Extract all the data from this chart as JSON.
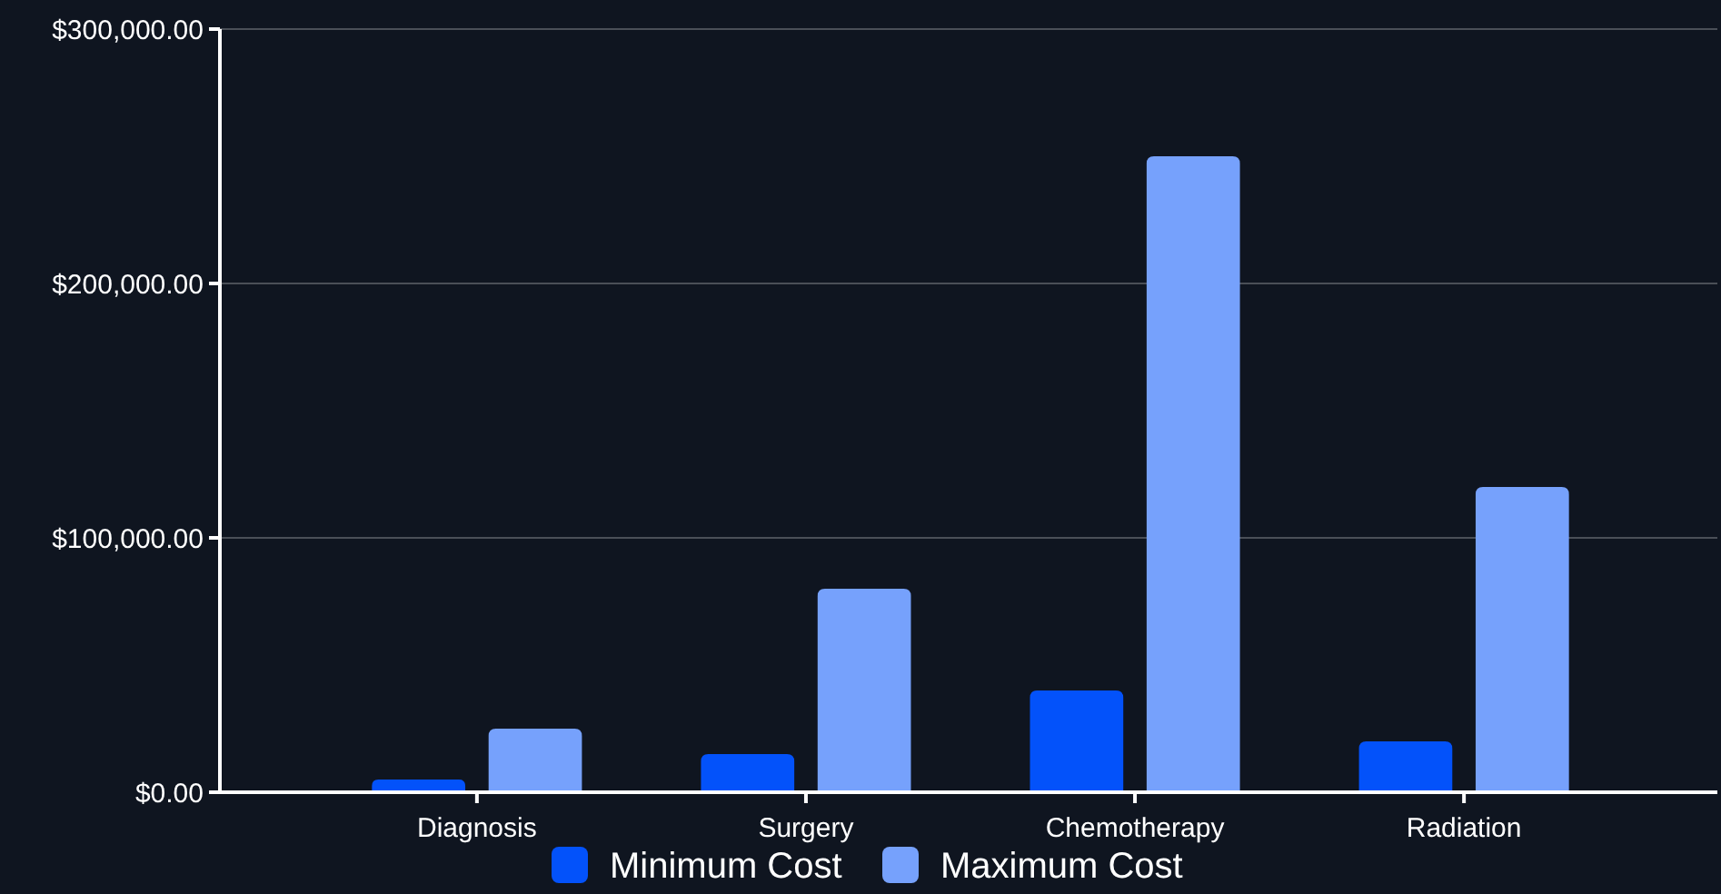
{
  "chart_data": {
    "type": "bar",
    "categories": [
      "Diagnosis",
      "Surgery",
      "Chemotherapy",
      "Radiation"
    ],
    "series": [
      {
        "name": "Minimum Cost",
        "color": "#0352fa",
        "values": [
          5000,
          15000,
          40000,
          20000
        ]
      },
      {
        "name": "Maximum Cost",
        "color": "#76a1fc",
        "values": [
          25000,
          80000,
          250000,
          120000
        ]
      }
    ],
    "ylim": [
      0,
      300000
    ],
    "yticks": [
      {
        "value": 0,
        "label": "$0.00"
      },
      {
        "value": 100000,
        "label": "$100,000.00"
      },
      {
        "value": 200000,
        "label": "$200,000.00"
      },
      {
        "value": 300000,
        "label": "$300,000.00"
      }
    ],
    "grid": "y",
    "legend": "bottom"
  }
}
